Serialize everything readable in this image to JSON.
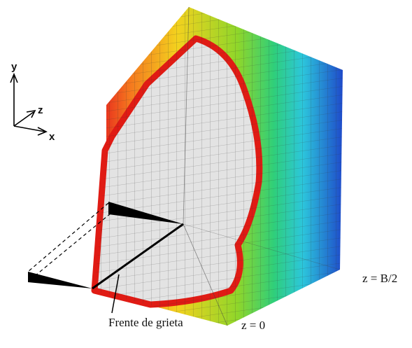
{
  "axes": {
    "y": "y",
    "z": "z",
    "x": "x"
  },
  "annotations": {
    "right_face": "z = B/2",
    "crack_front": "Frente de grieta",
    "front_face": "z = 0"
  }
}
